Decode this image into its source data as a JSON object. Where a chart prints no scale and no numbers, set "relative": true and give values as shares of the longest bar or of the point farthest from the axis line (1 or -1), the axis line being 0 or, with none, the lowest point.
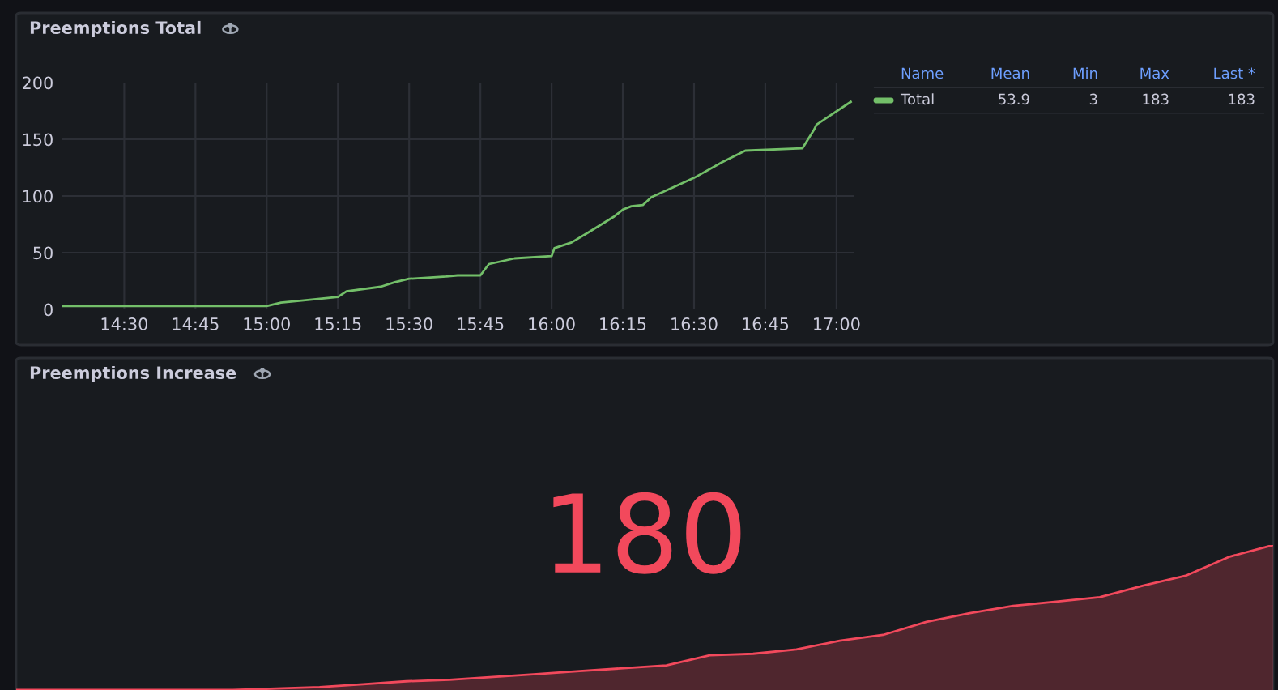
{
  "chart_data": [
    {
      "type": "line",
      "title": "Preemptions Total",
      "legend": "right",
      "legend_title": "Name",
      "grid": true,
      "annotations": [
        "Mean",
        "Min",
        "Max",
        "Last *",
        "53.9",
        "3",
        "183",
        "183"
      ],
      "xlim": [
        14.28,
        17.06
      ],
      "ylim": [
        0,
        200
      ],
      "xticks": [
        {
          "value": 14.5,
          "label": "14:30"
        },
        {
          "value": 14.75,
          "label": "14:45"
        },
        {
          "value": 15.0,
          "label": "15:00"
        },
        {
          "value": 15.25,
          "label": "15:15"
        },
        {
          "value": 15.5,
          "label": "15:30"
        },
        {
          "value": 15.75,
          "label": "15:45"
        },
        {
          "value": 16.0,
          "label": "16:00"
        },
        {
          "value": 16.25,
          "label": "16:15"
        },
        {
          "value": 16.5,
          "label": "16:30"
        },
        {
          "value": 16.75,
          "label": "16:45"
        },
        {
          "value": 17.0,
          "label": "17:00"
        }
      ],
      "yticks": [
        0,
        50,
        100,
        150,
        200
      ],
      "x": [
        14.28,
        15.0,
        15.05,
        15.13,
        15.25,
        15.28,
        15.4,
        15.45,
        15.5,
        15.63,
        15.67,
        15.75,
        15.78,
        15.87,
        16.0,
        16.01,
        16.07,
        16.13,
        16.22,
        16.25,
        16.28,
        16.32,
        16.35,
        16.43,
        16.5,
        16.6,
        16.68,
        16.88,
        16.92,
        16.93,
        17.05
      ],
      "series": [
        {
          "name": "Total",
          "color": "#73bf69",
          "values": [
            3,
            3,
            6,
            8,
            11,
            16,
            20,
            24,
            27,
            29,
            30,
            30,
            40,
            45,
            47,
            54,
            59,
            68,
            82,
            88,
            91,
            92,
            99,
            108,
            116,
            130,
            140,
            142,
            158,
            163,
            183
          ]
        }
      ]
    },
    {
      "type": "area",
      "title": "Preemptions Increase",
      "relative": true,
      "annotations": [
        "180"
      ],
      "categories": [
        null,
        null,
        null,
        null,
        null,
        null,
        null,
        null,
        null,
        null,
        null,
        null,
        null,
        null,
        null,
        null,
        null,
        null,
        null,
        null,
        null,
        null,
        null,
        null,
        null,
        null,
        null,
        null,
        null,
        null
      ],
      "series": [
        {
          "color": "#f2495c",
          "values": [
            0,
            0,
            0,
            0,
            0,
            0,
            0.01,
            0.02,
            0.04,
            0.06,
            0.07,
            0.09,
            0.11,
            0.13,
            0.15,
            0.17,
            0.24,
            0.25,
            0.28,
            0.34,
            0.38,
            0.47,
            0.53,
            0.58,
            0.61,
            0.64,
            0.72,
            0.79,
            0.92,
            1.0
          ]
        }
      ]
    }
  ]
}
